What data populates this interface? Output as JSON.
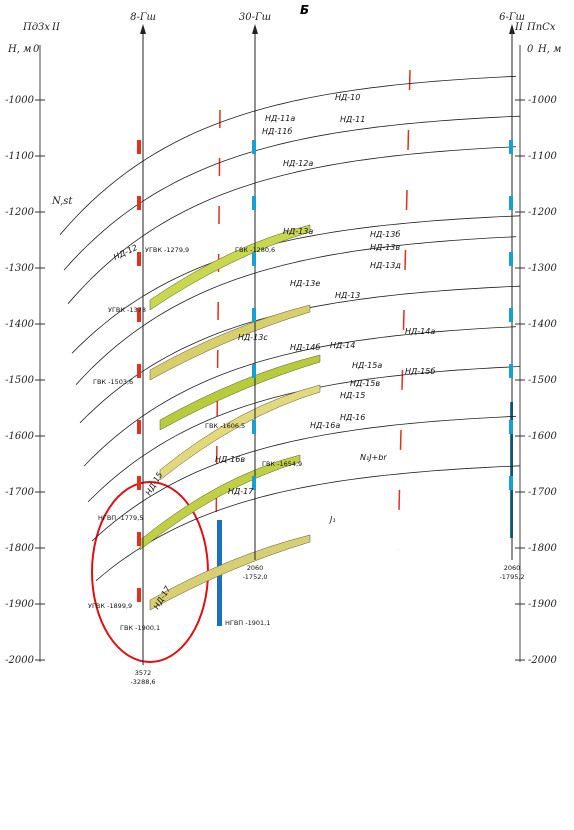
{
  "header": {
    "title": "Б"
  },
  "wells": [
    {
      "name": "8-Гш",
      "depth": "3572",
      "abs": "-3288,6"
    },
    {
      "name": "30-Гш",
      "depth": "2060",
      "abs": "-1752,0"
    },
    {
      "name": "6-Гш",
      "depth": "2060",
      "abs": "-1795,2"
    }
  ],
  "left_axis": {
    "section": "ПдЗх",
    "roman": "II",
    "unit": "Н, м",
    "zero": 0,
    "ticks": [
      -1000,
      -1100,
      -1200,
      -1300,
      -1400,
      -1500,
      -1600,
      -1700,
      -1800,
      -1900,
      -2000
    ]
  },
  "right_axis": {
    "roman": "II",
    "section": "ПпСх",
    "zero": 0,
    "unit": "Н, м",
    "ticks": [
      -1000,
      -1100,
      -1200,
      -1300,
      -1400,
      -1500,
      -1600,
      -1700,
      -1800,
      -1900,
      -2000
    ]
  },
  "labels": [
    "НД-10",
    "НД-11",
    "НД-11а",
    "НД-11б",
    "НД-12а",
    "НД-12",
    "НД-13б",
    "НД-13в",
    "НД-13а",
    "НД-13д",
    "НД-13е",
    "НД-13",
    "НД-13с",
    "НД-14а",
    "НД-14",
    "НД-14б",
    "НД-15а",
    "НД-15б",
    "НД-15в",
    "НД-15",
    "НД-16",
    "НД-16а",
    "НД-16в",
    "НД-17",
    "НД-15",
    "НД-17",
    "N,st",
    "J₁",
    "N₁J+br"
  ],
  "contacts": [
    "УГВК -1279,9",
    "ГВК -1280,6",
    "УГВК -1378",
    "ГВК -1503,6",
    "ГВК -1606,5",
    "ГВК -1654,9",
    "НГВП -1901,1",
    "УГВК -1899,9",
    "ГВК -1900,1",
    "НГВП -1779,5"
  ]
}
